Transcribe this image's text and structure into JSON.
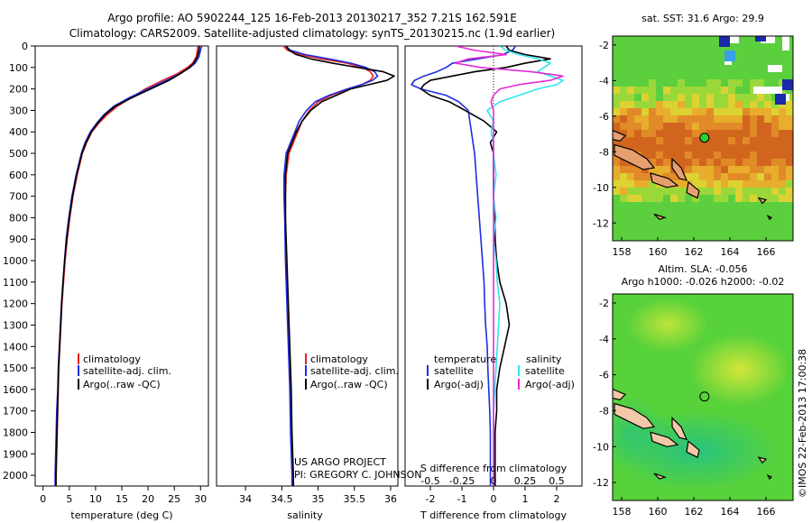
{
  "header": {
    "title_line1": "Argo profile: AO 5902244_125 16-Feb-2013 20130217_352 7.21S 162.591E",
    "title_line2": "Climatology: CARS2009. Satellite-adjusted climatology: synTS_20130215.nc (1.9d earlier)"
  },
  "project": {
    "line1": "US ARGO PROJECT",
    "line2": "PI: GREGORY C. JOHNSON"
  },
  "colors": {
    "climatology": "#e8201c",
    "satellite": "#1f2ee0",
    "argo": "#000000",
    "salinity_satellite": "#2ee6ee",
    "salinity_argo": "#e62ad6"
  },
  "depth_axis": {
    "ylim": [
      0,
      2050
    ],
    "ticks": [
      "0",
      "100",
      "200",
      "300",
      "400",
      "500",
      "600",
      "700",
      "800",
      "900",
      "1000",
      "1100",
      "1200",
      "1300",
      "1400",
      "1500",
      "1600",
      "1700",
      "1800",
      "1900",
      "2000"
    ]
  },
  "chart_data": [
    {
      "type": "line",
      "xlabel": "temperature (deg C)",
      "xlim": [
        -1.5,
        31.5
      ],
      "xticks": [
        "0",
        "5",
        "10",
        "15",
        "20",
        "25",
        "30"
      ],
      "legend": [
        "climatology",
        "satellite-adj. clim.",
        "Argo(..raw -QC)"
      ],
      "depth": [
        0,
        20,
        50,
        80,
        100,
        130,
        160,
        200,
        240,
        280,
        320,
        360,
        400,
        450,
        500,
        600,
        700,
        800,
        900,
        1000,
        1100,
        1200,
        1300,
        1400,
        1500,
        1600,
        1700,
        1800,
        1900,
        2000,
        2050
      ],
      "series": [
        {
          "name": "climatology",
          "values": [
            29.5,
            29.4,
            29.2,
            28.5,
            27.5,
            25.5,
            22.8,
            19.5,
            16.8,
            14.2,
            12.2,
            10.6,
            9.3,
            8.3,
            7.5,
            6.5,
            5.7,
            5.1,
            4.6,
            4.2,
            3.9,
            3.6,
            3.4,
            3.2,
            3.0,
            2.9,
            2.8,
            2.7,
            2.6,
            2.5,
            2.5
          ]
        },
        {
          "name": "satellite-adj. clim.",
          "values": [
            30.2,
            30.0,
            29.7,
            29.0,
            28.0,
            26.0,
            23.5,
            20.0,
            16.5,
            13.5,
            11.6,
            10.2,
            9.0,
            8.0,
            7.3,
            6.3,
            5.5,
            4.9,
            4.4,
            4.1,
            3.8,
            3.5,
            3.3,
            3.1,
            2.9,
            2.8,
            2.6,
            2.5,
            2.4,
            2.3,
            2.3
          ]
        },
        {
          "name": "Argo(..raw -QC)",
          "values": [
            29.8,
            29.7,
            29.4,
            28.7,
            27.9,
            26.1,
            24.0,
            20.5,
            17.0,
            13.8,
            11.8,
            10.4,
            9.2,
            8.2,
            7.4,
            6.4,
            5.6,
            5.0,
            4.5,
            4.1,
            3.8,
            3.55,
            3.35,
            3.15,
            2.95,
            2.85,
            2.75,
            2.65,
            2.55,
            2.45,
            2.45
          ]
        }
      ]
    },
    {
      "type": "line",
      "xlabel": "salinity",
      "xlim": [
        33.6,
        36.1
      ],
      "xticks": [
        "34",
        "34.5",
        "35",
        "35.5",
        "36"
      ],
      "legend": [
        "climatology",
        "satellite-adj. clim.",
        "Argo(..raw -QC)"
      ],
      "depth": [
        0,
        20,
        40,
        60,
        80,
        100,
        120,
        140,
        160,
        180,
        200,
        230,
        260,
        300,
        350,
        400,
        450,
        500,
        600,
        700,
        800,
        1000,
        1200,
        1400,
        1600,
        1800,
        2000,
        2050
      ],
      "series": [
        {
          "name": "climatology",
          "values": [
            34.52,
            34.58,
            34.75,
            35.05,
            35.4,
            35.62,
            35.72,
            35.76,
            35.72,
            35.6,
            35.42,
            35.18,
            35.0,
            34.88,
            34.78,
            34.72,
            34.66,
            34.6,
            34.56,
            34.55,
            34.55,
            34.56,
            34.58,
            34.6,
            34.62,
            34.63,
            34.65,
            34.65
          ]
        },
        {
          "name": "satellite-adj. clim.",
          "values": [
            34.55,
            34.62,
            34.82,
            35.15,
            35.45,
            35.66,
            35.78,
            35.82,
            35.75,
            35.6,
            35.4,
            35.15,
            34.96,
            34.84,
            34.74,
            34.68,
            34.62,
            34.56,
            34.53,
            34.53,
            34.54,
            34.55,
            34.57,
            34.59,
            34.61,
            34.62,
            34.64,
            34.64
          ]
        },
        {
          "name": "Argo(..raw -QC)",
          "values": [
            34.56,
            34.6,
            34.7,
            34.9,
            35.2,
            35.55,
            35.9,
            36.05,
            35.95,
            35.7,
            35.45,
            35.25,
            35.05,
            34.9,
            34.78,
            34.7,
            34.64,
            34.58,
            34.55,
            34.55,
            34.55,
            34.57,
            34.59,
            34.61,
            34.63,
            34.64,
            34.66,
            34.66
          ]
        }
      ]
    },
    {
      "type": "line",
      "xlabel": "T difference from climatology",
      "x2label": "S difference from climatology",
      "xlim": [
        -2.8,
        2.8
      ],
      "xticks": [
        "-2",
        "-1",
        "0",
        "1",
        "2"
      ],
      "x2ticks": [
        "-0.5",
        "-0.25",
        "0",
        "0.25",
        "0.5"
      ],
      "legend_headers": [
        "temperature",
        "salinity"
      ],
      "legend": [
        "satellite",
        "Argo(-adj)",
        "satellite",
        "Argo(-adj)"
      ],
      "depth": [
        0,
        20,
        40,
        60,
        80,
        100,
        120,
        140,
        160,
        180,
        200,
        230,
        260,
        300,
        350,
        400,
        450,
        500,
        600,
        700,
        800,
        900,
        1000,
        1100,
        1200,
        1300,
        1400,
        1500,
        1600,
        1700,
        1800,
        1900,
        2000,
        2050
      ],
      "series": [
        {
          "name": "temperature satellite",
          "values": [
            0.7,
            0.6,
            0.3,
            -0.5,
            -1.3,
            -1.5,
            -1.8,
            -2.2,
            -2.5,
            -2.6,
            -2.3,
            -1.5,
            -1.1,
            -0.8,
            -0.75,
            -0.7,
            -0.65,
            -0.6,
            -0.55,
            -0.5,
            -0.45,
            -0.4,
            -0.35,
            -0.3,
            -0.28,
            -0.25,
            -0.2,
            -0.18,
            -0.15,
            -0.12,
            -0.1,
            -0.1,
            -0.1,
            -0.1
          ]
        },
        {
          "name": "temperature Argo(-adj)",
          "values": [
            0.4,
            0.5,
            1.0,
            1.8,
            1.0,
            0.4,
            -0.6,
            -1.3,
            -2.0,
            -2.2,
            -2.3,
            -2.0,
            -1.4,
            -0.9,
            -0.3,
            0.1,
            -0.1,
            0.0,
            0.0,
            0.0,
            0.05,
            0.05,
            0.1,
            0.2,
            0.4,
            0.5,
            0.35,
            0.2,
            0.1,
            0.1,
            0.05,
            0.05,
            0.05,
            0.05
          ]
        },
        {
          "name": "salinity satellite",
          "values": [
            0.05,
            0.1,
            0.2,
            0.35,
            0.45,
            0.4,
            0.35,
            0.45,
            0.55,
            0.5,
            0.35,
            0.2,
            0.05,
            -0.05,
            0.0,
            -0.02,
            0.0,
            0.0,
            0.02,
            0.0,
            0.02,
            0.0,
            0.02,
            0.03,
            0.05,
            0.04,
            0.03,
            0.02,
            0.01,
            0.0,
            0.0,
            0.0,
            0.0,
            0.0
          ]
        },
        {
          "name": "salinity Argo(-adj)",
          "values": [
            -0.3,
            -0.15,
            0.1,
            -0.2,
            -0.3,
            -0.1,
            0.3,
            0.55,
            0.45,
            0.2,
            0.05,
            0.0,
            -0.02,
            0.0,
            0.0,
            0.0,
            0.0,
            0.0,
            0.0,
            0.0,
            0.0,
            0.0,
            0.0,
            0.0,
            0.0,
            0.0,
            0.0,
            0.0,
            0.0,
            0.0,
            0.0,
            0.0,
            0.0,
            0.0
          ]
        }
      ]
    },
    {
      "type": "heatmap",
      "title": "sat. SST: 31.6  Argo: 29.9",
      "xlim": [
        157.5,
        167.5
      ],
      "ylim": [
        -13,
        -1.5
      ],
      "xticks": [
        "158",
        "160",
        "162",
        "164",
        "166"
      ],
      "yticks": [
        "-2",
        "-4",
        "-6",
        "-8",
        "-10",
        "-12"
      ],
      "marker": {
        "lon": 162.591,
        "lat": -7.21
      }
    },
    {
      "type": "heatmap",
      "title": "Altim. SLA: -0.056",
      "subtitle": "Argo h1000: -0.026  h2000: -0.02",
      "xlim": [
        157.5,
        167.5
      ],
      "ylim": [
        -13,
        -1.5
      ],
      "xticks": [
        "158",
        "160",
        "162",
        "164",
        "166"
      ],
      "yticks": [
        "-2",
        "-4",
        "-6",
        "-8",
        "-10",
        "-12"
      ],
      "marker": {
        "lon": 162.591,
        "lat": -7.21
      }
    }
  ],
  "footer": {
    "stamp": "©IMOS 22-Feb-2013 17:00:38"
  }
}
